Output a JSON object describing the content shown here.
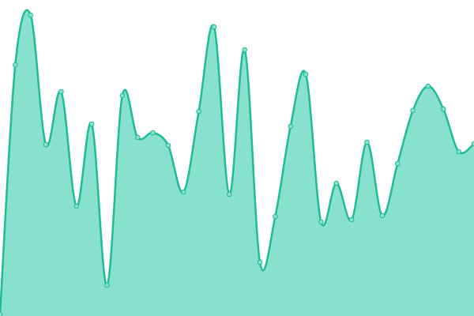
{
  "chart_data": {
    "type": "area",
    "x": [
      0,
      1,
      2,
      3,
      4,
      5,
      6,
      7,
      8,
      9,
      10,
      11,
      12,
      13,
      14,
      15,
      16,
      17,
      18,
      19,
      20,
      21,
      22,
      23,
      24,
      25,
      26,
      27,
      28,
      29,
      30,
      31
    ],
    "values": [
      2,
      318,
      381,
      217,
      284,
      139,
      243,
      39,
      279,
      226,
      232,
      216,
      157,
      259,
      366,
      154,
      337,
      68,
      126,
      240,
      306,
      119,
      168,
      122,
      220,
      127,
      193,
      260,
      291,
      262,
      208,
      218
    ],
    "color": "#1fbc96",
    "fill": "#88e1cf",
    "xlim": [
      0,
      31
    ],
    "ylim": [
      0,
      400
    ]
  }
}
